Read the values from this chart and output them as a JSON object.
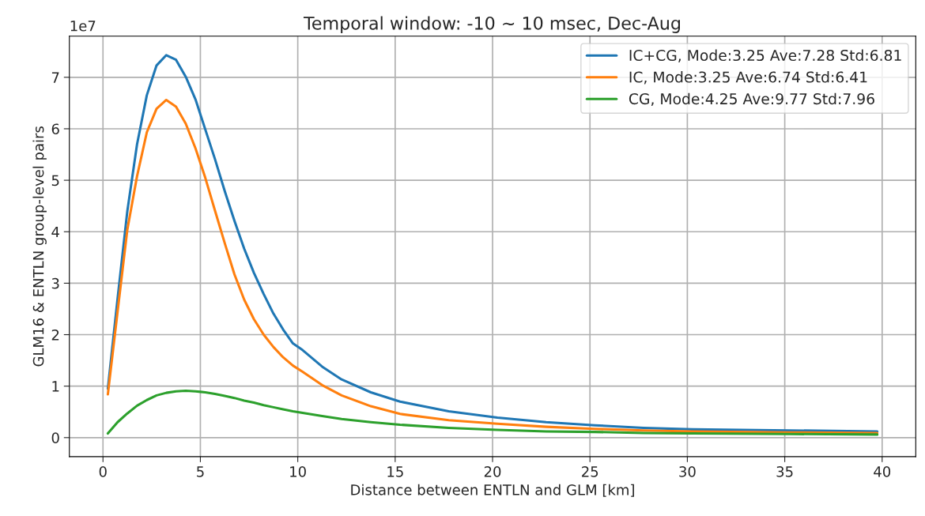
{
  "chart_data": {
    "type": "line",
    "title": "Temporal window: -10 ~ 10 msec, Dec-Aug",
    "xlabel": "Distance between ENTLN and GLM [km]",
    "ylabel": "GLM16 & ENTLN group-level pairs",
    "annotations": [
      "1e7"
    ],
    "x": [
      0.25,
      0.75,
      1.25,
      1.75,
      2.25,
      2.75,
      3.25,
      3.75,
      4.25,
      4.75,
      5.25,
      5.75,
      6.25,
      6.75,
      7.25,
      7.75,
      8.25,
      8.75,
      9.25,
      9.75,
      10.25,
      11.25,
      12.25,
      13.75,
      15.25,
      17.75,
      20.25,
      22.75,
      25.25,
      27.75,
      30.25,
      35.25,
      39.75
    ],
    "series": [
      {
        "name": "IC+CG, Mode:3.25 Ave:7.28 Std:6.81",
        "color": "#1f77b4",
        "values": [
          0.95,
          2.7,
          4.4,
          5.7,
          6.65,
          7.23,
          7.43,
          7.34,
          7.01,
          6.57,
          5.99,
          5.41,
          4.79,
          4.21,
          3.67,
          3.2,
          2.79,
          2.41,
          2.1,
          1.83,
          1.7,
          1.38,
          1.13,
          0.88,
          0.7,
          0.51,
          0.39,
          0.3,
          0.24,
          0.19,
          0.16,
          0.14,
          0.12
        ]
      },
      {
        "name": "IC, Mode:3.25 Ave:6.74 Std:6.41",
        "color": "#ff7f0e",
        "values": [
          0.84,
          2.45,
          4.04,
          5.08,
          5.93,
          6.39,
          6.56,
          6.43,
          6.1,
          5.62,
          5.05,
          4.41,
          3.78,
          3.17,
          2.68,
          2.3,
          2.0,
          1.76,
          1.56,
          1.4,
          1.28,
          1.02,
          0.82,
          0.61,
          0.46,
          0.34,
          0.27,
          0.21,
          0.17,
          0.14,
          0.12,
          0.1,
          0.09
        ]
      },
      {
        "name": "CG, Mode:4.25 Ave:9.77 Std:7.96",
        "color": "#2ca02c",
        "values": [
          0.08,
          0.3,
          0.47,
          0.62,
          0.73,
          0.82,
          0.87,
          0.9,
          0.91,
          0.9,
          0.88,
          0.85,
          0.81,
          0.77,
          0.72,
          0.68,
          0.63,
          0.59,
          0.55,
          0.51,
          0.48,
          0.42,
          0.36,
          0.3,
          0.25,
          0.19,
          0.15,
          0.12,
          0.11,
          0.09,
          0.08,
          0.07,
          0.06
        ]
      }
    ],
    "xlim": [
      -1.725,
      41.725
    ],
    "xticks": [
      0,
      5,
      10,
      15,
      20,
      25,
      30,
      35,
      40
    ],
    "ylim": [
      -0.37,
      7.8
    ],
    "yticks": [
      0,
      1,
      2,
      3,
      4,
      5,
      6,
      7
    ],
    "grid": true,
    "legend": "top right"
  }
}
